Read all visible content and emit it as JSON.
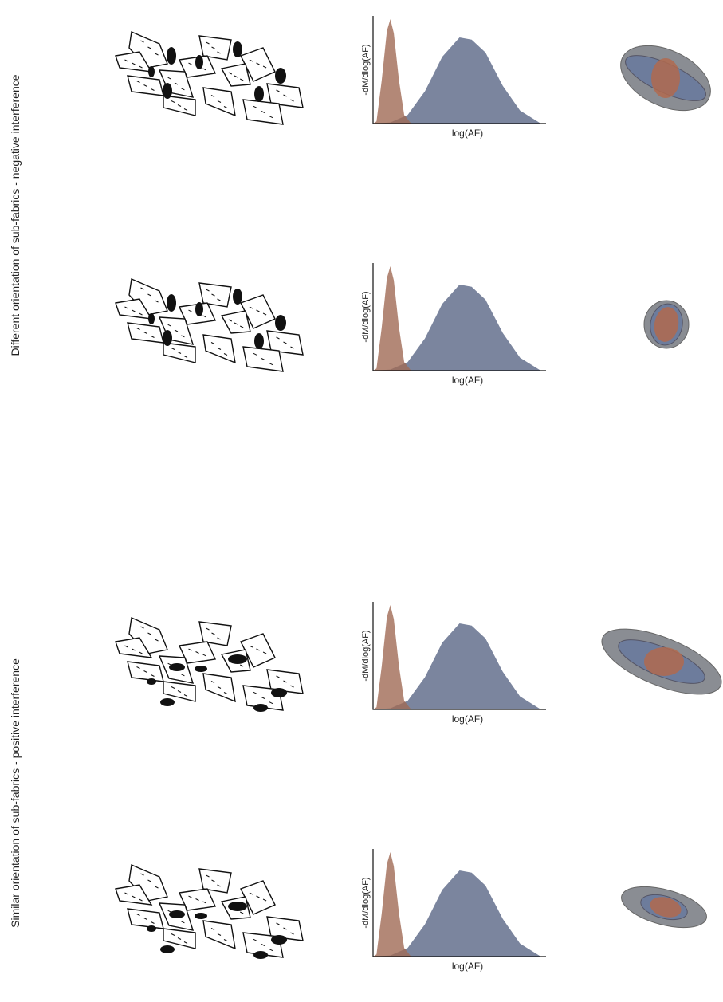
{
  "groups": [
    {
      "label": "Different orientation of sub-fabrics - negative interference",
      "panels": [
        {
          "y_label": "-dM/dlog(AF)",
          "x_label": "log(AF)"
        },
        {
          "y_label": "-dM/dlog(AF)",
          "x_label": "log(AF)"
        }
      ]
    },
    {
      "label": "Similar orientation of sub-fabrics - positive interference",
      "panels": [
        {
          "y_label": "-dM/dlog(AF)",
          "x_label": "log(AF)"
        },
        {
          "y_label": "-dM/dlog(AF)",
          "x_label": "log(AF)"
        }
      ]
    }
  ]
}
